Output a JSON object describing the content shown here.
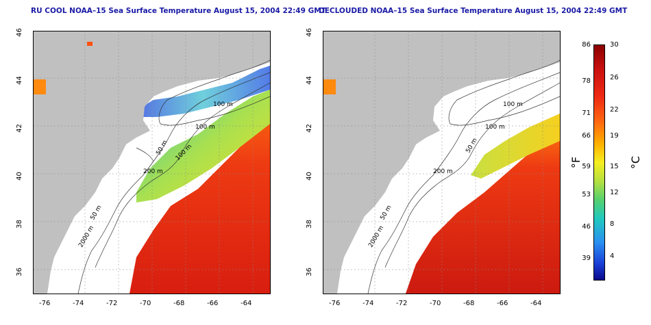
{
  "panels": [
    {
      "title": "RU COOL NOAA–15 Sea Surface Temperature August 15, 2004 22:49 GMT",
      "x_ticks": [
        "-76",
        "-74",
        "-72",
        "-70",
        "-68",
        "-66",
        "-64"
      ],
      "y_ticks": [
        "46",
        "44",
        "42",
        "40",
        "38",
        "36"
      ],
      "contour_labels": [
        "100 m",
        "100 m",
        "50 m",
        "100 m",
        "200 m",
        "50 m",
        "2000 m"
      ]
    },
    {
      "title": "DECLOUDED NOAA–15 Sea Surface Temperature August 15, 2004 22:49 GMT",
      "x_ticks": [
        "-76",
        "-74",
        "-72",
        "-70",
        "-68",
        "-66",
        "-64"
      ],
      "y_ticks": [
        "46",
        "44",
        "42",
        "40",
        "38",
        "36"
      ],
      "contour_labels": [
        "100 m",
        "100 m",
        "50 m",
        "200 m",
        "50 m",
        "2000 m"
      ]
    }
  ],
  "colorbar": {
    "fahrenheit_label": "°F",
    "celsius_label": "°C",
    "fahrenheit_ticks": [
      "86",
      "78",
      "71",
      "66",
      "59",
      "53",
      "46",
      "39"
    ],
    "celsius_ticks": [
      "30",
      "26",
      "22",
      "19",
      "15",
      "12",
      "8",
      "4"
    ],
    "range_celsius": [
      1,
      30
    ]
  },
  "colors": {
    "land": "#c0c0c0",
    "title": "#1a1aa6",
    "warm": "#e02a12",
    "cold": "#1a40d8"
  }
}
